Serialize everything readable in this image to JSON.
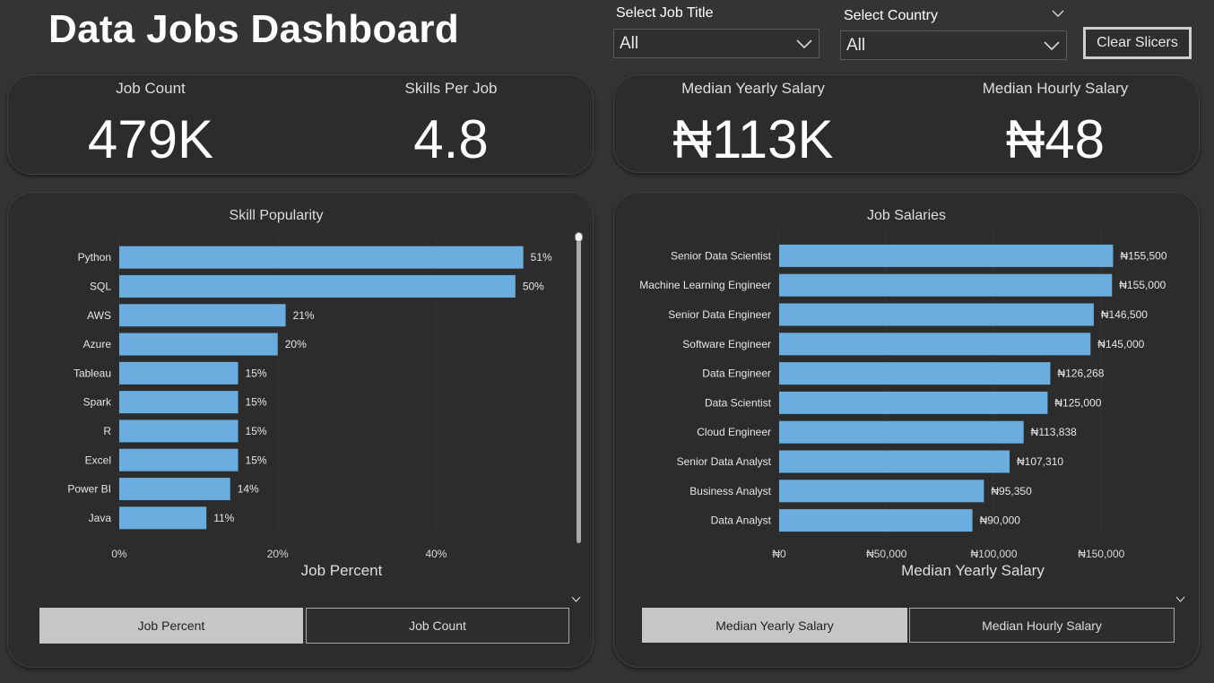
{
  "header": {
    "title": "Data Jobs Dashboard"
  },
  "slicers": {
    "job_title": {
      "label": "Select Job Title",
      "value": "All"
    },
    "country": {
      "label": "Select Country",
      "value": "All"
    },
    "clear_label": "Clear Slicers"
  },
  "kpis": {
    "job_count": {
      "label": "Job Count",
      "value": "479K"
    },
    "skills_per_job": {
      "label": "Skills Per Job",
      "value": "4.8"
    },
    "median_yearly": {
      "label": "Median Yearly Salary",
      "value": "₦113K"
    },
    "median_hourly": {
      "label": "Median Hourly Salary",
      "value": "₦48"
    }
  },
  "skill_chart": {
    "title": "Skill Popularity",
    "xlabel": "Job Percent",
    "toggles": {
      "active": "Job Percent",
      "inactive": "Job Count"
    }
  },
  "salary_chart": {
    "title": "Job Salaries",
    "xlabel": "Median Yearly Salary",
    "toggles": {
      "active": "Median Yearly Salary",
      "inactive": "Median Hourly Salary"
    }
  },
  "chart_data": [
    {
      "type": "bar",
      "orientation": "horizontal",
      "title": "Skill Popularity",
      "xlabel": "Job Percent",
      "categories": [
        "Python",
        "SQL",
        "AWS",
        "Azure",
        "Tableau",
        "Spark",
        "R",
        "Excel",
        "Power BI",
        "Java"
      ],
      "values": [
        51,
        50,
        21,
        20,
        15,
        15,
        15,
        15,
        14,
        11
      ],
      "value_labels": [
        "51%",
        "50%",
        "21%",
        "20%",
        "15%",
        "15%",
        "15%",
        "15%",
        "14%",
        "11%"
      ],
      "xticks": [
        "0%",
        "20%",
        "40%"
      ],
      "xtick_values": [
        0,
        20,
        40
      ],
      "xlim": [
        0,
        55
      ],
      "bar_color": "#6aaee0"
    },
    {
      "type": "bar",
      "orientation": "horizontal",
      "title": "Job Salaries",
      "xlabel": "Median Yearly Salary",
      "categories": [
        "Senior Data Scientist",
        "Machine Learning Engineer",
        "Senior Data Engineer",
        "Software Engineer",
        "Data Engineer",
        "Data Scientist",
        "Cloud Engineer",
        "Senior Data Analyst",
        "Business Analyst",
        "Data Analyst"
      ],
      "values": [
        155500,
        155000,
        146500,
        145000,
        126268,
        125000,
        113838,
        107310,
        95350,
        90000
      ],
      "value_labels": [
        "₦155,500",
        "₦155,000",
        "₦146,500",
        "₦145,000",
        "₦126,268",
        "₦125,000",
        "₦113,838",
        "₦107,310",
        "₦95,350",
        "₦90,000"
      ],
      "xticks": [
        "₦0",
        "₦50,000",
        "₦100,000",
        "₦150,000"
      ],
      "xtick_values": [
        0,
        50000,
        100000,
        150000
      ],
      "xlim": [
        0,
        167000
      ],
      "bar_color": "#6aaee0"
    }
  ]
}
